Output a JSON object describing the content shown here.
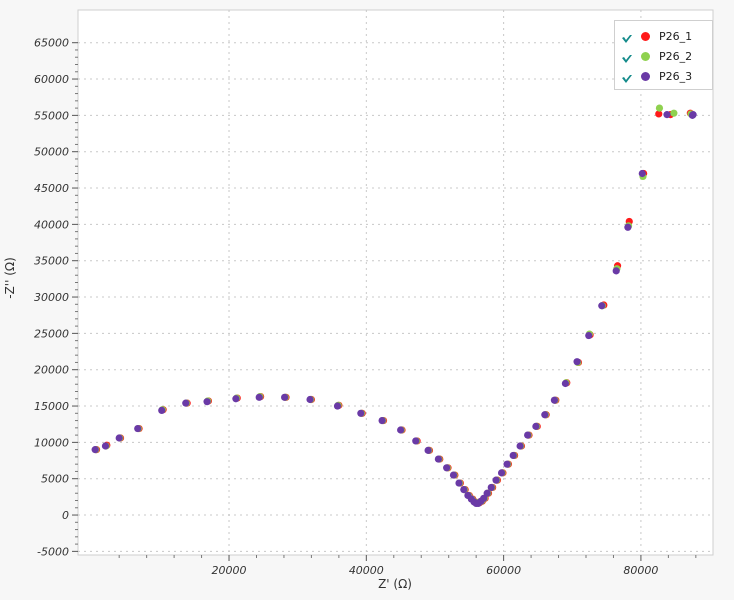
{
  "chart_data": {
    "type": "scatter",
    "xlabel": "Z' (Ω)",
    "ylabel": "-Z'' (Ω)",
    "xlim": [
      -2000,
      90500
    ],
    "ylim": [
      -5500,
      69500
    ],
    "xticks": [
      20000,
      40000,
      60000,
      80000
    ],
    "yticks": [
      -5000,
      0,
      5000,
      10000,
      15000,
      20000,
      25000,
      30000,
      35000,
      40000,
      45000,
      50000,
      55000,
      60000,
      65000
    ],
    "tick_labels_x": [
      "20000",
      "40000",
      "60000",
      "80000"
    ],
    "tick_labels_y": [
      "-5000",
      "0",
      "5000",
      "10000",
      "15000",
      "20000",
      "25000",
      "30000",
      "35000",
      "40000",
      "45000",
      "50000",
      "55000",
      "60000",
      "65000"
    ],
    "grid": true,
    "legend_position": "top-right",
    "series": [
      {
        "name": "P26_1",
        "color": "#ff1a1a",
        "x": [
          700,
          2200,
          4200,
          6900,
          10400,
          13900,
          17000,
          21200,
          24600,
          28300,
          32000,
          36000,
          39400,
          42500,
          45200,
          47400,
          49200,
          50700,
          51900,
          52900,
          53700,
          54400,
          55000,
          55500,
          55900,
          56200,
          56500,
          56900,
          57300,
          57800,
          58400,
          59100,
          59900,
          60700,
          61600,
          62600,
          63700,
          64900,
          66200,
          67600,
          69200,
          70900,
          72600,
          74600,
          76600,
          78300,
          80400,
          82600,
          84300,
          87200
        ],
        "y": [
          9000,
          9600,
          10600,
          11900,
          14500,
          15400,
          15700,
          16100,
          16300,
          16200,
          15900,
          15100,
          14000,
          13000,
          11700,
          10200,
          8900,
          7700,
          6500,
          5500,
          4400,
          3500,
          2700,
          2200,
          1800,
          1700,
          1700,
          1900,
          2300,
          3000,
          3800,
          4800,
          5800,
          7000,
          8200,
          9500,
          11000,
          12200,
          13800,
          15800,
          18200,
          21000,
          24800,
          28900,
          34300,
          40400,
          47000,
          55200,
          55100,
          55300
        ]
      },
      {
        "name": "P26_2",
        "color": "#8fd14f",
        "x": [
          600,
          2100,
          4100,
          6800,
          10300,
          13800,
          16900,
          21100,
          24500,
          28200,
          31900,
          35900,
          39300,
          42400,
          45100,
          47300,
          49100,
          50600,
          51800,
          52800,
          53600,
          54300,
          54900,
          55400,
          55800,
          56100,
          56400,
          56800,
          57200,
          57700,
          58300,
          59000,
          59800,
          60600,
          61500,
          62500,
          63600,
          64800,
          66100,
          67500,
          69100,
          70800,
          72500,
          74400,
          76500,
          78200,
          80300,
          82700,
          84800,
          87300
        ],
        "y": [
          9000,
          9500,
          10600,
          11900,
          14500,
          15400,
          15700,
          16100,
          16300,
          16200,
          15900,
          15100,
          14000,
          13000,
          11700,
          10200,
          8900,
          7700,
          6500,
          5500,
          4400,
          3500,
          2700,
          2200,
          1800,
          1700,
          1700,
          1900,
          2300,
          3000,
          3800,
          4800,
          5800,
          7000,
          8200,
          9500,
          11000,
          12200,
          13800,
          15800,
          18200,
          21000,
          24900,
          28800,
          33900,
          39800,
          46600,
          56000,
          55300,
          55200
        ]
      },
      {
        "name": "P26_3",
        "color": "#6a3aa6",
        "x": [
          500,
          2000,
          4000,
          6700,
          10200,
          13700,
          16800,
          21000,
          24400,
          28100,
          31800,
          35800,
          39200,
          42300,
          45000,
          47200,
          49000,
          50500,
          51700,
          52700,
          53500,
          54200,
          54800,
          55300,
          55700,
          56000,
          56300,
          56700,
          57100,
          57600,
          58200,
          58900,
          59700,
          60500,
          61400,
          62400,
          63500,
          64700,
          66000,
          67400,
          69000,
          70700,
          72400,
          74300,
          76400,
          78100,
          80200,
          83800,
          87500,
          87600
        ],
        "y": [
          9000,
          9500,
          10600,
          11900,
          14400,
          15400,
          15600,
          16000,
          16200,
          16200,
          15900,
          15000,
          14000,
          13000,
          11700,
          10200,
          8900,
          7700,
          6500,
          5500,
          4400,
          3500,
          2700,
          2200,
          1800,
          1600,
          1600,
          1900,
          2300,
          3000,
          3800,
          4800,
          5800,
          7000,
          8200,
          9500,
          11000,
          12200,
          13800,
          15800,
          18100,
          21100,
          24700,
          28800,
          33600,
          39600,
          47000,
          55100,
          55000,
          55100
        ]
      }
    ]
  },
  "legend": {
    "items": [
      {
        "label": "P26_1",
        "color": "#ff1a1a",
        "check_color": "#138a8a"
      },
      {
        "label": "P26_2",
        "color": "#8fd14f",
        "check_color": "#138a8a"
      },
      {
        "label": "P26_3",
        "color": "#6a3aa6",
        "check_color": "#138a8a"
      }
    ]
  }
}
